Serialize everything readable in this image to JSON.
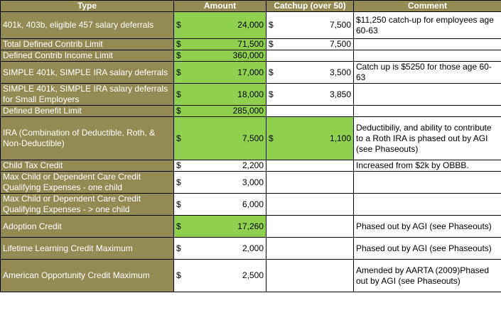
{
  "headers": {
    "type": "Type",
    "amount": "Amount",
    "catchup": "Catchup (over 50)",
    "comment": "Comment"
  },
  "currency_symbol": "$",
  "colors": {
    "header_bg": "#948a54",
    "header_text": "#ffffff",
    "type_bg": "#948a54",
    "highlight_green": "#8fd14f"
  },
  "rows": [
    {
      "type": "401k, 403b, eligible 457 salary deferrals",
      "amount": "24,000",
      "catchup": "7,500",
      "comment": "$11,250 catch-up for employees age 60-63",
      "amount_green": true,
      "catchup_green": false
    },
    {
      "type": "Total Defined Contrib Limit",
      "amount": "71,500",
      "catchup": "7,500",
      "comment": "",
      "amount_green": true,
      "catchup_green": false
    },
    {
      "type": "Defined Contrib Income Limit",
      "amount": "360,000",
      "catchup": "",
      "comment": "",
      "amount_green": true,
      "catchup_green": false
    },
    {
      "type": "SIMPLE 401k, SIMPLE IRA salary deferrals",
      "amount": "17,000",
      "catchup": "3,500",
      "comment": "Catch up is $5250 for those age 60-63",
      "amount_green": true,
      "catchup_green": false
    },
    {
      "type": "SIMPLE 401k, SIMPLE IRA salary deferrals for Small Employers",
      "amount": "18,000",
      "catchup": "3,850",
      "comment": "",
      "amount_green": true,
      "catchup_green": false
    },
    {
      "type": "Defined Benefit Limit",
      "amount": "285,000",
      "catchup": "",
      "comment": "",
      "amount_green": true,
      "catchup_green": false
    },
    {
      "type": "IRA (Combination of Deductible, Roth, & Non-Deductible)",
      "amount": "7,500",
      "catchup": "1,100",
      "comment": "Deductibiliy, and ability to contribute to a Roth IRA is phased out by AGI (see Phaseouts)",
      "amount_green": true,
      "catchup_green": true
    },
    {
      "type": "Child Tax Credit",
      "amount": "2,200",
      "catchup": "",
      "comment": "Increased from $2k by OBBB.",
      "amount_green": false,
      "catchup_green": false
    },
    {
      "type": "Max Child or Dependent Care Credit Qualifying Expenses - one child",
      "amount": "3,000",
      "catchup": "",
      "comment": "",
      "amount_green": false,
      "catchup_green": false
    },
    {
      "type": "Max Child or Dependent Care Credit Qualifying Expenses - > one child",
      "amount": "6,000",
      "catchup": "",
      "comment": "",
      "amount_green": false,
      "catchup_green": false
    },
    {
      "type": "Adoption Credit",
      "amount": "17,260",
      "catchup": "",
      "comment": "Phased out by AGI (see Phaseouts)",
      "amount_green": true,
      "catchup_green": false
    },
    {
      "type": "Lifetime Learning Credit Maximum",
      "amount": "2,000",
      "catchup": "",
      "comment": "Phased out by AGI (see Phaseouts)",
      "amount_green": false,
      "catchup_green": false
    },
    {
      "type": "American Opportunity Credit Maximum",
      "amount": "2,500",
      "catchup": "",
      "comment": "Amended by AARTA (2009)Phased out by AGI (see Phaseouts)",
      "amount_green": false,
      "catchup_green": false
    }
  ]
}
